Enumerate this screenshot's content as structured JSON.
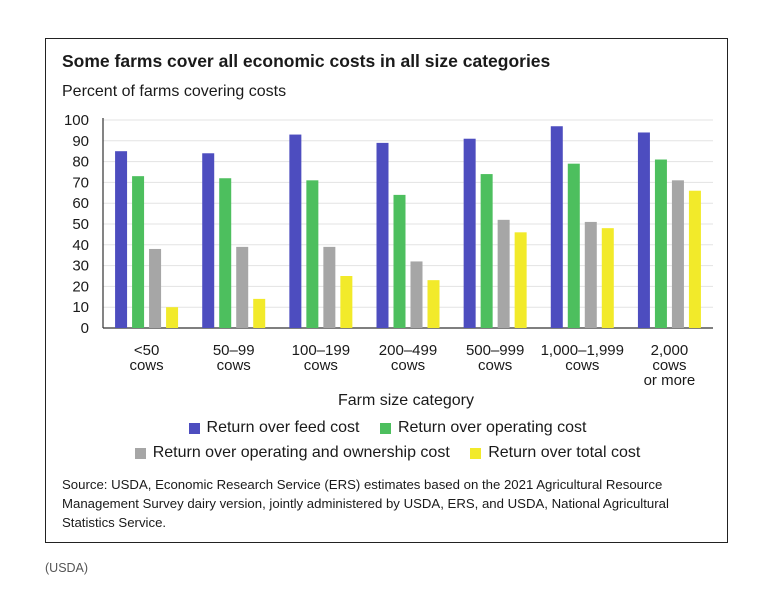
{
  "chart_data": {
    "type": "bar",
    "title": "Some farms cover all economic costs in all size categories",
    "ylabel": "Percent of farms covering costs",
    "xlabel": "Farm size category",
    "ylim": [
      0,
      100
    ],
    "yticks": [
      0,
      10,
      20,
      30,
      40,
      50,
      60,
      70,
      80,
      90,
      100
    ],
    "categories": [
      [
        "<50",
        "cows"
      ],
      [
        "50–99",
        "cows"
      ],
      [
        "100–199",
        "cows"
      ],
      [
        "200–499",
        "cows"
      ],
      [
        "500–999",
        "cows"
      ],
      [
        "1,000–1,999",
        "cows"
      ],
      [
        "2,000",
        "cows",
        "or more"
      ]
    ],
    "series": [
      {
        "name": "Return over feed cost",
        "color": "#4d4dbf",
        "values": [
          85,
          84,
          93,
          89,
          91,
          97,
          94
        ]
      },
      {
        "name": "Return over operating cost",
        "color": "#4dbf5e",
        "values": [
          73,
          72,
          71,
          64,
          74,
          79,
          81
        ]
      },
      {
        "name": "Return over operating and ownership cost",
        "color": "#a6a6a6",
        "values": [
          38,
          39,
          39,
          32,
          52,
          51,
          71
        ]
      },
      {
        "name": "Return over total cost",
        "color": "#f2ea2a",
        "values": [
          10,
          14,
          25,
          23,
          46,
          48,
          66
        ]
      }
    ],
    "grid": true,
    "legend_position": "bottom"
  },
  "source": "Source: USDA, Economic Research Service (ERS) estimates based on the 2021 Agricultural Resource Management Survey dairy version, jointly administered by USDA, ERS, and USDA, National Agricultural Statistics Service.",
  "credit": "(USDA)"
}
